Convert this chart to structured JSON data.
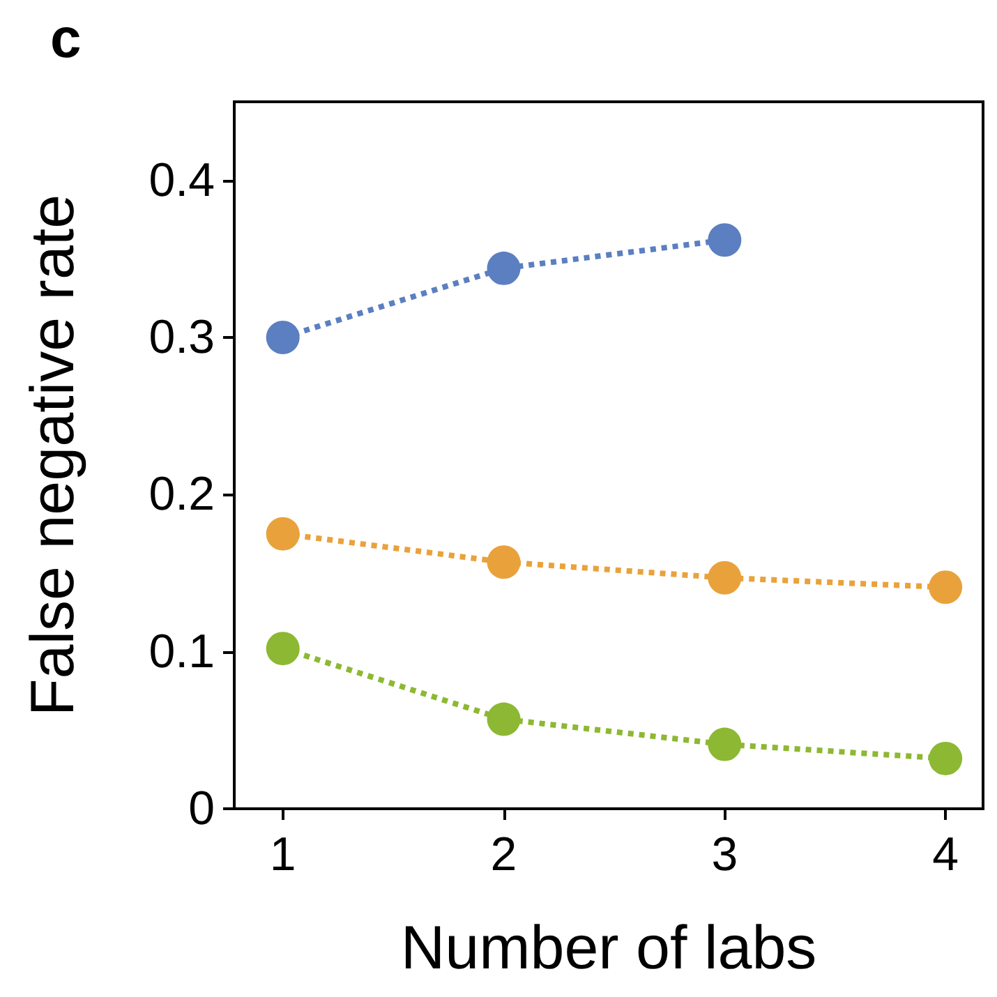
{
  "chart_data": {
    "type": "line",
    "xlabel": "Number of labs",
    "ylabel": "False negative rate",
    "annotations": [
      "c"
    ],
    "x": [
      1,
      2,
      3,
      4
    ],
    "series": [
      {
        "color": "#5b7fc0",
        "values": [
          0.3,
          0.344,
          0.362,
          null
        ]
      },
      {
        "color": "#e9a23b",
        "values": [
          0.175,
          0.157,
          0.147,
          0.141
        ]
      },
      {
        "color": "#8db833",
        "values": [
          0.102,
          0.057,
          0.041,
          0.032
        ]
      }
    ],
    "xlim": [
      0.78,
      4.17
    ],
    "xticks": [
      1,
      2,
      3,
      4
    ],
    "ylim": [
      0,
      0.45
    ],
    "yticks": [
      0,
      0.1,
      0.2,
      0.3,
      0.4
    ],
    "grid": false,
    "marker": "circle",
    "line_style": "dotted"
  }
}
